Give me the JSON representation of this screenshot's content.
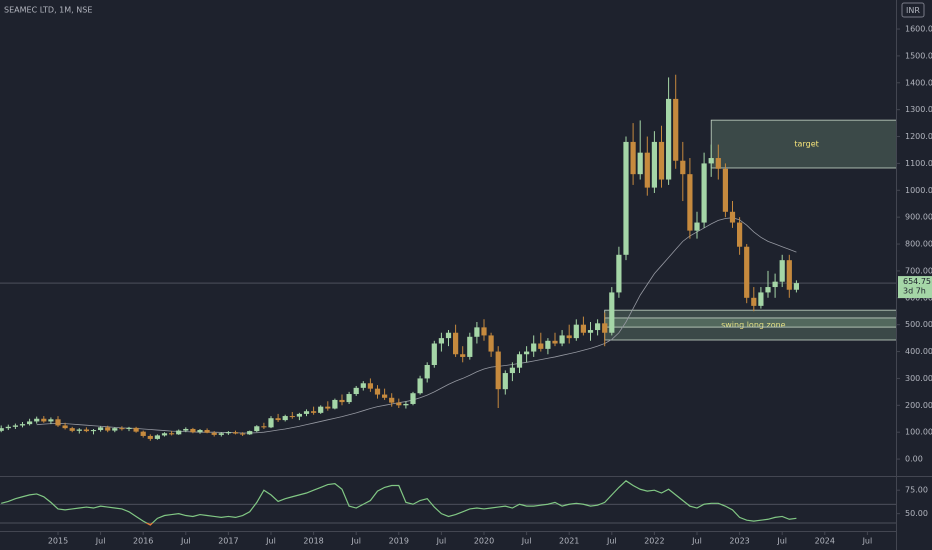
{
  "chart_data": {
    "type": "candlestick",
    "title": "SEAMEC LTD, 1M, NSE",
    "currency": "INR",
    "up_color": "#a5d6a7",
    "down_color": "#c68a3e",
    "x": [
      "2014-05",
      "2014-06",
      "2014-07",
      "2014-08",
      "2014-09",
      "2014-10",
      "2014-11",
      "2014-12",
      "2015-01",
      "2015-02",
      "2015-03",
      "2015-04",
      "2015-05",
      "2015-06",
      "2015-07",
      "2015-08",
      "2015-09",
      "2015-10",
      "2015-11",
      "2015-12",
      "2016-01",
      "2016-02",
      "2016-03",
      "2016-04",
      "2016-05",
      "2016-06",
      "2016-07",
      "2016-08",
      "2016-09",
      "2016-10",
      "2016-11",
      "2016-12",
      "2017-01",
      "2017-02",
      "2017-03",
      "2017-04",
      "2017-05",
      "2017-06",
      "2017-07",
      "2017-08",
      "2017-09",
      "2017-10",
      "2017-11",
      "2017-12",
      "2018-01",
      "2018-02",
      "2018-03",
      "2018-04",
      "2018-05",
      "2018-06",
      "2018-07",
      "2018-08",
      "2018-09",
      "2018-10",
      "2018-11",
      "2018-12",
      "2019-01",
      "2019-02",
      "2019-03",
      "2019-04",
      "2019-05",
      "2019-06",
      "2019-07",
      "2019-08",
      "2019-09",
      "2019-10",
      "2019-11",
      "2019-12",
      "2020-01",
      "2020-02",
      "2020-03",
      "2020-04",
      "2020-05",
      "2020-06",
      "2020-07",
      "2020-08",
      "2020-09",
      "2020-10",
      "2020-11",
      "2020-12",
      "2021-01",
      "2021-02",
      "2021-03",
      "2021-04",
      "2021-05",
      "2021-06",
      "2021-07",
      "2021-08",
      "2021-09",
      "2021-10",
      "2021-11",
      "2021-12",
      "2022-01",
      "2022-02",
      "2022-03",
      "2022-04",
      "2022-05",
      "2022-06",
      "2022-07",
      "2022-08",
      "2022-09",
      "2022-10",
      "2022-11",
      "2022-12",
      "2023-01",
      "2023-02",
      "2023-03",
      "2023-04",
      "2023-05",
      "2023-06",
      "2023-07",
      "2023-08",
      "2023-09"
    ],
    "ohlc": [
      [
        105,
        125,
        100,
        115
      ],
      [
        115,
        128,
        108,
        120
      ],
      [
        120,
        132,
        112,
        125
      ],
      [
        125,
        138,
        118,
        130
      ],
      [
        130,
        150,
        125,
        140
      ],
      [
        140,
        158,
        132,
        150
      ],
      [
        150,
        160,
        135,
        140
      ],
      [
        140,
        155,
        130,
        148
      ],
      [
        148,
        160,
        120,
        125
      ],
      [
        125,
        135,
        110,
        115
      ],
      [
        115,
        120,
        100,
        105
      ],
      [
        105,
        115,
        95,
        110
      ],
      [
        110,
        118,
        100,
        104
      ],
      [
        104,
        112,
        92,
        108
      ],
      [
        108,
        122,
        102,
        118
      ],
      [
        118,
        124,
        100,
        106
      ],
      [
        106,
        118,
        100,
        115
      ],
      [
        115,
        122,
        106,
        112
      ],
      [
        112,
        120,
        104,
        116
      ],
      [
        116,
        120,
        98,
        102
      ],
      [
        102,
        106,
        80,
        86
      ],
      [
        86,
        92,
        68,
        75
      ],
      [
        75,
        92,
        72,
        88
      ],
      [
        88,
        100,
        84,
        96
      ],
      [
        96,
        104,
        88,
        92
      ],
      [
        92,
        110,
        90,
        106
      ],
      [
        106,
        118,
        100,
        112
      ],
      [
        112,
        116,
        96,
        100
      ],
      [
        100,
        112,
        94,
        108
      ],
      [
        108,
        114,
        96,
        98
      ],
      [
        98,
        104,
        84,
        90
      ],
      [
        90,
        100,
        84,
        96
      ],
      [
        96,
        104,
        90,
        100
      ],
      [
        100,
        106,
        92,
        95
      ],
      [
        95,
        100,
        86,
        92
      ],
      [
        92,
        106,
        90,
        104
      ],
      [
        104,
        126,
        100,
        122
      ],
      [
        122,
        135,
        112,
        118
      ],
      [
        118,
        160,
        115,
        152
      ],
      [
        152,
        168,
        138,
        145
      ],
      [
        145,
        165,
        140,
        160
      ],
      [
        160,
        175,
        150,
        158
      ],
      [
        158,
        172,
        145,
        168
      ],
      [
        168,
        185,
        160,
        178
      ],
      [
        178,
        195,
        165,
        172
      ],
      [
        172,
        200,
        168,
        195
      ],
      [
        195,
        215,
        180,
        188
      ],
      [
        188,
        225,
        185,
        220
      ],
      [
        220,
        240,
        200,
        212
      ],
      [
        212,
        250,
        205,
        242
      ],
      [
        242,
        272,
        235,
        265
      ],
      [
        265,
        290,
        255,
        282
      ],
      [
        282,
        300,
        250,
        262
      ],
      [
        262,
        275,
        225,
        240
      ],
      [
        240,
        262,
        220,
        228
      ],
      [
        228,
        245,
        195,
        210
      ],
      [
        210,
        225,
        190,
        200
      ],
      [
        200,
        215,
        188,
        205
      ],
      [
        205,
        250,
        200,
        245
      ],
      [
        245,
        310,
        240,
        300
      ],
      [
        300,
        360,
        285,
        350
      ],
      [
        350,
        440,
        340,
        430
      ],
      [
        430,
        470,
        400,
        450
      ],
      [
        450,
        480,
        420,
        470
      ],
      [
        470,
        500,
        380,
        390
      ],
      [
        390,
        420,
        360,
        380
      ],
      [
        380,
        470,
        370,
        455
      ],
      [
        455,
        510,
        430,
        490
      ],
      [
        490,
        520,
        440,
        460
      ],
      [
        460,
        470,
        380,
        400
      ],
      [
        400,
        420,
        190,
        260
      ],
      [
        260,
        330,
        240,
        320
      ],
      [
        320,
        360,
        290,
        340
      ],
      [
        340,
        400,
        320,
        390
      ],
      [
        390,
        420,
        360,
        400
      ],
      [
        400,
        460,
        380,
        430
      ],
      [
        430,
        470,
        400,
        410
      ],
      [
        410,
        450,
        390,
        440
      ],
      [
        440,
        470,
        420,
        430
      ],
      [
        430,
        480,
        420,
        460
      ],
      [
        460,
        500,
        430,
        450
      ],
      [
        450,
        520,
        440,
        500
      ],
      [
        500,
        530,
        460,
        470
      ],
      [
        470,
        510,
        440,
        480
      ],
      [
        480,
        520,
        460,
        505
      ],
      [
        505,
        545,
        420,
        470
      ],
      [
        470,
        640,
        460,
        620
      ],
      [
        620,
        790,
        600,
        760
      ],
      [
        760,
        1200,
        740,
        1180
      ],
      [
        1180,
        1250,
        1020,
        1060
      ],
      [
        1060,
        1260,
        1040,
        1140
      ],
      [
        1140,
        1200,
        980,
        1010
      ],
      [
        1010,
        1220,
        990,
        1180
      ],
      [
        1180,
        1240,
        1010,
        1040
      ],
      [
        1040,
        1420,
        1020,
        1340
      ],
      [
        1340,
        1430,
        1080,
        1110
      ],
      [
        1110,
        1180,
        960,
        1060
      ],
      [
        1060,
        1120,
        820,
        850
      ],
      [
        850,
        920,
        820,
        880
      ],
      [
        880,
        1140,
        860,
        1100
      ],
      [
        1100,
        1170,
        1050,
        1120
      ],
      [
        1120,
        1170,
        1040,
        1080
      ],
      [
        1080,
        1100,
        900,
        920
      ],
      [
        920,
        960,
        860,
        880
      ],
      [
        880,
        900,
        760,
        790
      ],
      [
        790,
        800,
        580,
        600
      ],
      [
        600,
        640,
        550,
        570
      ],
      [
        570,
        640,
        560,
        620
      ],
      [
        620,
        700,
        600,
        640
      ],
      [
        640,
        690,
        600,
        660
      ],
      [
        660,
        760,
        640,
        740
      ],
      [
        740,
        760,
        600,
        630
      ],
      [
        630,
        665,
        620,
        654.75
      ]
    ],
    "ma": {
      "color": "#9598a1",
      "values": [
        null,
        null,
        null,
        null,
        null,
        128,
        130,
        132,
        133,
        132,
        130,
        128,
        126,
        124,
        122,
        120,
        118,
        116,
        115,
        114,
        112,
        110,
        108,
        106,
        104,
        103,
        102,
        101,
        100,
        100,
        100,
        99,
        99,
        98,
        97,
        97,
        98,
        100,
        104,
        108,
        112,
        117,
        122,
        128,
        134,
        140,
        146,
        152,
        158,
        165,
        172,
        180,
        188,
        195,
        200,
        205,
        210,
        214,
        220,
        228,
        238,
        250,
        264,
        278,
        290,
        300,
        312,
        325,
        335,
        342,
        345,
        348,
        352,
        356,
        360,
        365,
        370,
        375,
        380,
        386,
        392,
        398,
        405,
        412,
        420,
        430,
        445,
        470,
        510,
        560,
        610,
        650,
        690,
        720,
        750,
        780,
        810,
        830,
        845,
        860,
        875,
        888,
        895,
        898,
        890,
        870,
        845,
        825,
        810,
        800,
        790,
        780,
        770
      ]
    },
    "ylim": [
      -63,
      1708
    ],
    "yticks": [
      {
        "value": 0,
        "label": "0.00"
      },
      {
        "value": 100,
        "label": "100.00"
      },
      {
        "value": 200,
        "label": "200.00"
      },
      {
        "value": 300,
        "label": "300.00"
      },
      {
        "value": 400,
        "label": "400.00"
      },
      {
        "value": 500,
        "label": "500.00"
      },
      {
        "value": 600,
        "label": "600.00"
      },
      {
        "value": 700,
        "label": "700.00"
      },
      {
        "value": 800,
        "label": "800.00"
      },
      {
        "value": 900,
        "label": "900.00"
      },
      {
        "value": 1000,
        "label": "1000.00"
      },
      {
        "value": 1100,
        "label": "1100.00"
      },
      {
        "value": 1200,
        "label": "1200.00"
      },
      {
        "value": 1300,
        "label": "1300.00"
      },
      {
        "value": 1400,
        "label": "1400.00"
      },
      {
        "value": 1500,
        "label": "1500.00"
      },
      {
        "value": 1600,
        "label": "1600.00"
      }
    ],
    "xticks": [
      {
        "value": "2015-01",
        "label": "2015"
      },
      {
        "value": "2015-07",
        "label": "Jul"
      },
      {
        "value": "2016-01",
        "label": "2016"
      },
      {
        "value": "2016-07",
        "label": "Jul"
      },
      {
        "value": "2017-01",
        "label": "2017"
      },
      {
        "value": "2017-07",
        "label": "Jul"
      },
      {
        "value": "2018-01",
        "label": "2018"
      },
      {
        "value": "2018-07",
        "label": "Jul"
      },
      {
        "value": "2019-01",
        "label": "2019"
      },
      {
        "value": "2019-07",
        "label": "Jul"
      },
      {
        "value": "2020-01",
        "label": "2020"
      },
      {
        "value": "2020-07",
        "label": "Jul"
      },
      {
        "value": "2021-01",
        "label": "2021"
      },
      {
        "value": "2021-07",
        "label": "Jul"
      },
      {
        "value": "2022-01",
        "label": "2022"
      },
      {
        "value": "2022-07",
        "label": "Jul"
      },
      {
        "value": "2023-01",
        "label": "2023"
      },
      {
        "value": "2023-07",
        "label": "Jul"
      },
      {
        "value": "2024-01",
        "label": "2024"
      },
      {
        "value": "2024-07",
        "label": "Jul"
      }
    ],
    "last_price": 654.75,
    "countdown": "3d 7h",
    "zones": [
      {
        "label": "target",
        "low": 1083,
        "high": 1261,
        "start": "2022-09"
      },
      {
        "label": "swing long zone",
        "low": 443,
        "high": 554,
        "start": "2021-06"
      },
      {
        "low": 491,
        "high": 525,
        "start": "2021-06"
      }
    ],
    "rsi": {
      "color": "#81c784",
      "low_color": "#e07b39",
      "values": [
        61,
        63,
        66,
        68,
        70,
        71,
        68,
        62,
        55,
        54,
        55,
        56,
        57,
        56,
        58,
        57,
        56,
        55,
        52,
        47,
        42,
        38,
        45,
        48,
        49,
        50,
        48,
        47,
        49,
        48,
        47,
        46,
        47,
        46,
        48,
        52,
        62,
        75,
        70,
        63,
        66,
        68,
        70,
        72,
        75,
        78,
        81,
        82,
        76,
        58,
        56,
        60,
        64,
        74,
        78,
        80,
        80,
        62,
        60,
        64,
        66,
        57,
        50,
        47,
        49,
        52,
        55,
        56,
        55,
        56,
        57,
        58,
        56,
        60,
        58,
        58,
        59,
        60,
        62,
        58,
        60,
        61,
        60,
        58,
        59,
        62,
        70,
        78,
        85,
        80,
        76,
        74,
        75,
        72,
        76,
        70,
        64,
        58,
        56,
        60,
        61,
        61,
        58,
        54,
        46,
        43,
        42,
        43,
        44,
        46,
        47,
        44,
        45
      ],
      "ylim": [
        31.5,
        88
      ],
      "yticks": [
        {
          "value": 75,
          "label": "75.00"
        },
        {
          "value": 50,
          "label": "50.00"
        }
      ],
      "levels": [
        60,
        40
      ]
    }
  }
}
